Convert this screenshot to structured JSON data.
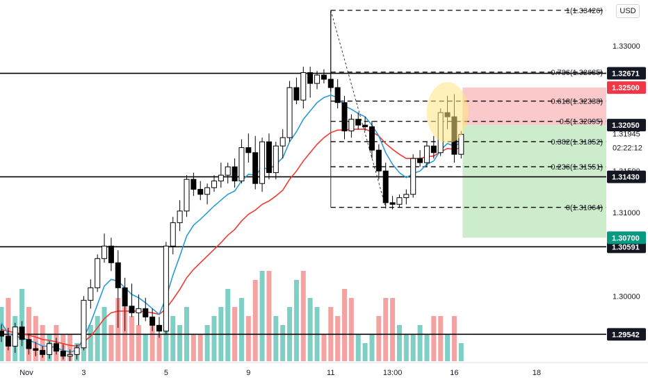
{
  "currency_button": "USD",
  "countdown": "02:22:12",
  "chart_data": {
    "type": "candlestick",
    "price_range": [
      1.2922,
      1.3355
    ],
    "price_ticks": [
      "1.33000",
      "1.31500",
      "1.31000",
      "1.30000"
    ],
    "time_ticks": [
      {
        "index": 0,
        "label": "Nov"
      },
      {
        "index": 12,
        "label": "3"
      },
      {
        "index": 24,
        "label": "5"
      },
      {
        "index": 36,
        "label": "9"
      },
      {
        "index": 48,
        "label": "11"
      },
      {
        "index": 57,
        "label": "13:00"
      },
      {
        "index": 66,
        "label": "16"
      },
      {
        "index": 78,
        "label": "18"
      }
    ],
    "candles": [
      [
        1.2958,
        1.2966,
        1.2945,
        1.2952
      ],
      [
        1.2952,
        1.2962,
        1.2935,
        1.294
      ],
      [
        1.294,
        1.2968,
        1.2932,
        1.2963
      ],
      [
        1.2963,
        1.297,
        1.294,
        1.2948
      ],
      [
        1.2948,
        1.2955,
        1.293,
        1.2937
      ],
      [
        1.2937,
        1.2945,
        1.2928,
        1.2935
      ],
      [
        1.2935,
        1.294,
        1.2926,
        1.293
      ],
      [
        1.293,
        1.2946,
        1.2925,
        1.2943
      ],
      [
        1.2943,
        1.295,
        1.293,
        1.2934
      ],
      [
        1.2934,
        1.2942,
        1.2924,
        1.2928
      ],
      [
        1.2928,
        1.2936,
        1.2922,
        1.293
      ],
      [
        1.293,
        1.2942,
        1.2924,
        1.2938
      ],
      [
        1.2938,
        1.3,
        1.2935,
        1.2995
      ],
      [
        1.2995,
        1.302,
        1.2985,
        1.301
      ],
      [
        1.301,
        1.305,
        1.3005,
        1.3045
      ],
      [
        1.3045,
        1.3075,
        1.304,
        1.306
      ],
      [
        1.306,
        1.307,
        1.303,
        1.304
      ],
      [
        1.304,
        1.3055,
        1.2962,
        1.301
      ],
      [
        1.301,
        1.3022,
        1.2958,
        1.2988
      ],
      [
        1.2988,
        1.3015,
        1.2975,
        1.298
      ],
      [
        1.298,
        1.3002,
        1.2965,
        1.2985
      ],
      [
        1.2985,
        1.2998,
        1.297,
        1.2975
      ],
      [
        1.2975,
        1.2985,
        1.2958,
        1.2965
      ],
      [
        1.2965,
        1.2975,
        1.295,
        1.2958
      ],
      [
        1.2958,
        1.3065,
        1.2955,
        1.306
      ],
      [
        1.306,
        1.3095,
        1.305,
        1.3088
      ],
      [
        1.3088,
        1.3115,
        1.3078,
        1.3102
      ],
      [
        1.3102,
        1.3145,
        1.3095,
        1.314
      ],
      [
        1.314,
        1.3148,
        1.312,
        1.3128
      ],
      [
        1.3128,
        1.3138,
        1.3115,
        1.3122
      ],
      [
        1.3122,
        1.3135,
        1.311,
        1.313
      ],
      [
        1.313,
        1.3145,
        1.3125,
        1.3138
      ],
      [
        1.3138,
        1.316,
        1.313,
        1.3145
      ],
      [
        1.3145,
        1.316,
        1.3135,
        1.3155
      ],
      [
        1.3155,
        1.3165,
        1.313,
        1.3138
      ],
      [
        1.3138,
        1.3188,
        1.3135,
        1.3178
      ],
      [
        1.3178,
        1.3195,
        1.316,
        1.3172
      ],
      [
        1.3172,
        1.3192,
        1.3128,
        1.3135
      ],
      [
        1.3135,
        1.319,
        1.3125,
        1.3185
      ],
      [
        1.3185,
        1.3195,
        1.314,
        1.3148
      ],
      [
        1.3148,
        1.3185,
        1.314,
        1.318
      ],
      [
        1.318,
        1.32,
        1.3165,
        1.319
      ],
      [
        1.319,
        1.3258,
        1.3185,
        1.325
      ],
      [
        1.325,
        1.3262,
        1.323,
        1.3235
      ],
      [
        1.3235,
        1.3275,
        1.3225,
        1.3268
      ],
      [
        1.3268,
        1.3275,
        1.3238,
        1.3255
      ],
      [
        1.3255,
        1.327,
        1.3248,
        1.3265
      ],
      [
        1.3265,
        1.3272,
        1.3255,
        1.326
      ],
      [
        1.326,
        1.3342,
        1.3245,
        1.325
      ],
      [
        1.325,
        1.326,
        1.3225,
        1.3232
      ],
      [
        1.3232,
        1.324,
        1.3188,
        1.3198
      ],
      [
        1.3198,
        1.3218,
        1.319,
        1.3212
      ],
      [
        1.3212,
        1.322,
        1.32,
        1.3205
      ],
      [
        1.3205,
        1.3215,
        1.3198,
        1.3203
      ],
      [
        1.3203,
        1.321,
        1.3165,
        1.3175
      ],
      [
        1.3175,
        1.3182,
        1.314,
        1.315
      ],
      [
        1.315,
        1.316,
        1.3105,
        1.3112
      ],
      [
        1.3112,
        1.312,
        1.3104,
        1.311
      ],
      [
        1.311,
        1.3122,
        1.3106,
        1.3118
      ],
      [
        1.3118,
        1.3128,
        1.311,
        1.3122
      ],
      [
        1.3122,
        1.317,
        1.3118,
        1.3165
      ],
      [
        1.3165,
        1.3175,
        1.3155,
        1.316
      ],
      [
        1.316,
        1.3185,
        1.3155,
        1.318
      ],
      [
        1.318,
        1.3192,
        1.3165,
        1.3172
      ],
      [
        1.3172,
        1.3225,
        1.3168,
        1.322
      ],
      [
        1.322,
        1.324,
        1.32,
        1.3215
      ],
      [
        1.3215,
        1.3242,
        1.316,
        1.317
      ],
      [
        1.317,
        1.3198,
        1.3165,
        1.3194
      ]
    ],
    "volumes": [
      [
        6,
        1
      ],
      [
        7,
        0
      ],
      [
        5,
        1
      ],
      [
        8,
        1
      ],
      [
        6,
        0
      ],
      [
        5,
        0
      ],
      [
        4,
        0
      ],
      [
        3,
        1
      ],
      [
        4,
        0
      ],
      [
        3,
        0
      ],
      [
        3,
        0
      ],
      [
        2,
        1
      ],
      [
        5,
        1
      ],
      [
        4,
        1
      ],
      [
        5,
        1
      ],
      [
        6,
        1
      ],
      [
        4,
        0
      ],
      [
        7,
        0
      ],
      [
        6,
        0
      ],
      [
        5,
        0
      ],
      [
        4,
        0
      ],
      [
        3,
        1
      ],
      [
        4,
        0
      ],
      [
        3,
        0
      ],
      [
        6,
        1
      ],
      [
        5,
        1
      ],
      [
        4,
        1
      ],
      [
        6,
        1
      ],
      [
        3,
        0
      ],
      [
        3,
        0
      ],
      [
        4,
        1
      ],
      [
        5,
        1
      ],
      [
        6,
        1
      ],
      [
        8,
        1
      ],
      [
        6,
        0
      ],
      [
        7,
        1
      ],
      [
        5,
        0
      ],
      [
        9,
        0
      ],
      [
        10,
        1
      ],
      [
        10,
        0
      ],
      [
        5,
        1
      ],
      [
        4,
        1
      ],
      [
        6,
        1
      ],
      [
        9,
        1
      ],
      [
        10,
        0
      ],
      [
        7,
        1
      ],
      [
        6,
        1
      ],
      [
        3,
        0
      ],
      [
        6,
        0
      ],
      [
        5,
        0
      ],
      [
        8,
        0
      ],
      [
        7,
        0
      ],
      [
        3,
        1
      ],
      [
        2,
        1
      ],
      [
        3,
        1
      ],
      [
        5,
        0
      ],
      [
        7,
        0
      ],
      [
        7,
        0
      ],
      [
        4,
        1
      ],
      [
        3,
        1
      ],
      [
        3,
        1
      ],
      [
        4,
        1
      ],
      [
        3,
        1
      ],
      [
        5,
        0
      ],
      [
        5,
        0
      ],
      [
        3,
        1
      ],
      [
        5,
        0
      ],
      [
        2,
        1
      ]
    ],
    "ema_fast": [
      1.2968,
      1.2955,
      1.2952,
      1.295,
      1.2947,
      1.2944,
      1.294,
      1.294,
      1.2938,
      1.2935,
      1.2933,
      1.2935,
      1.295,
      1.2968,
      1.299,
      1.3012,
      1.302,
      1.3018,
      1.301,
      1.3002,
      1.2998,
      1.2992,
      1.2985,
      1.2978,
      1.2998,
      1.3025,
      1.3048,
      1.3072,
      1.3085,
      1.3092,
      1.31,
      1.3108,
      1.3115,
      1.3122,
      1.3126,
      1.3138,
      1.3146,
      1.3145,
      1.3154,
      1.3152,
      1.3158,
      1.3166,
      1.3185,
      1.3197,
      1.3212,
      1.3222,
      1.3232,
      1.3238,
      1.3241,
      1.3238,
      1.3228,
      1.3224,
      1.3219,
      1.3215,
      1.3205,
      1.3192,
      1.3172,
      1.3158,
      1.3148,
      1.3142,
      1.3147,
      1.315,
      1.3158,
      1.3162,
      1.3175,
      1.3183,
      1.318,
      1.3184
    ],
    "ema_slow": [
      1.296,
      1.2958,
      1.2956,
      1.2955,
      1.2953,
      1.2951,
      1.2948,
      1.2947,
      1.2945,
      1.2943,
      1.2941,
      1.294,
      1.2945,
      1.2952,
      1.2962,
      1.2973,
      1.298,
      1.2982,
      1.2982,
      1.2982,
      1.2982,
      1.2981,
      1.298,
      1.2978,
      1.2985,
      1.2996,
      1.3008,
      1.3022,
      1.3032,
      1.304,
      1.3048,
      1.3056,
      1.3064,
      1.3073,
      1.308,
      1.309,
      1.3098,
      1.3103,
      1.311,
      1.3114,
      1.312,
      1.3127,
      1.314,
      1.315,
      1.3162,
      1.3172,
      1.3182,
      1.319,
      1.3196,
      1.3199,
      1.3199,
      1.32,
      1.32,
      1.32,
      1.3197,
      1.3192,
      1.3183,
      1.3176,
      1.317,
      1.3165,
      1.3165,
      1.3165,
      1.3167,
      1.3168,
      1.3173,
      1.3177,
      1.3176,
      1.3178
    ],
    "horizontal_levels": [
      {
        "price": 1.32671,
        "label": "1.32671",
        "tag_color": "#131722"
      },
      {
        "price": 1.3143,
        "label": "1.31430",
        "tag_color": "#131722"
      },
      {
        "price": 1.30591,
        "label": "1.30591",
        "tag_color": "#131722"
      },
      {
        "price": 1.29542,
        "label": "1.29542",
        "tag_color": "#131722"
      }
    ],
    "fib_levels": [
      {
        "price": 1.33426,
        "label": "1(1.33426)"
      },
      {
        "price": 1.32685,
        "label": "0.786(1.32685)"
      },
      {
        "price": 1.32338,
        "label": "0.618(1.32338)"
      },
      {
        "price": 1.32095,
        "label": "0.5(1.32095)"
      },
      {
        "price": 1.31852,
        "label": "0.382(1.31852)"
      },
      {
        "price": 1.31551,
        "label": "0.236(1.31551)"
      },
      {
        "price": 1.31064,
        "label": "0(1.31064)"
      }
    ],
    "position": {
      "stop": {
        "price": 1.325,
        "label": "1.32500",
        "tag_color": "#f23645"
      },
      "entry": {
        "price": 1.3205,
        "label": "1.32050",
        "tag_color": "#131722"
      },
      "target": {
        "price": 1.307,
        "label": "1.30700",
        "tag_color": "#089981"
      }
    },
    "last_price": {
      "price": 1.31945,
      "label": "1.31945"
    },
    "colors": {
      "up": "#26a69a",
      "down": "#000000",
      "wick": "#000000",
      "vol_up": "#7fcfc4",
      "vol_down": "#f4a3a3",
      "ema_fast": "#2a9bd6",
      "ema_slow": "#ef3a33",
      "stop_zone": "#fbc9c9",
      "target_zone": "#cdeccc",
      "highlight": "#ffe680"
    }
  }
}
